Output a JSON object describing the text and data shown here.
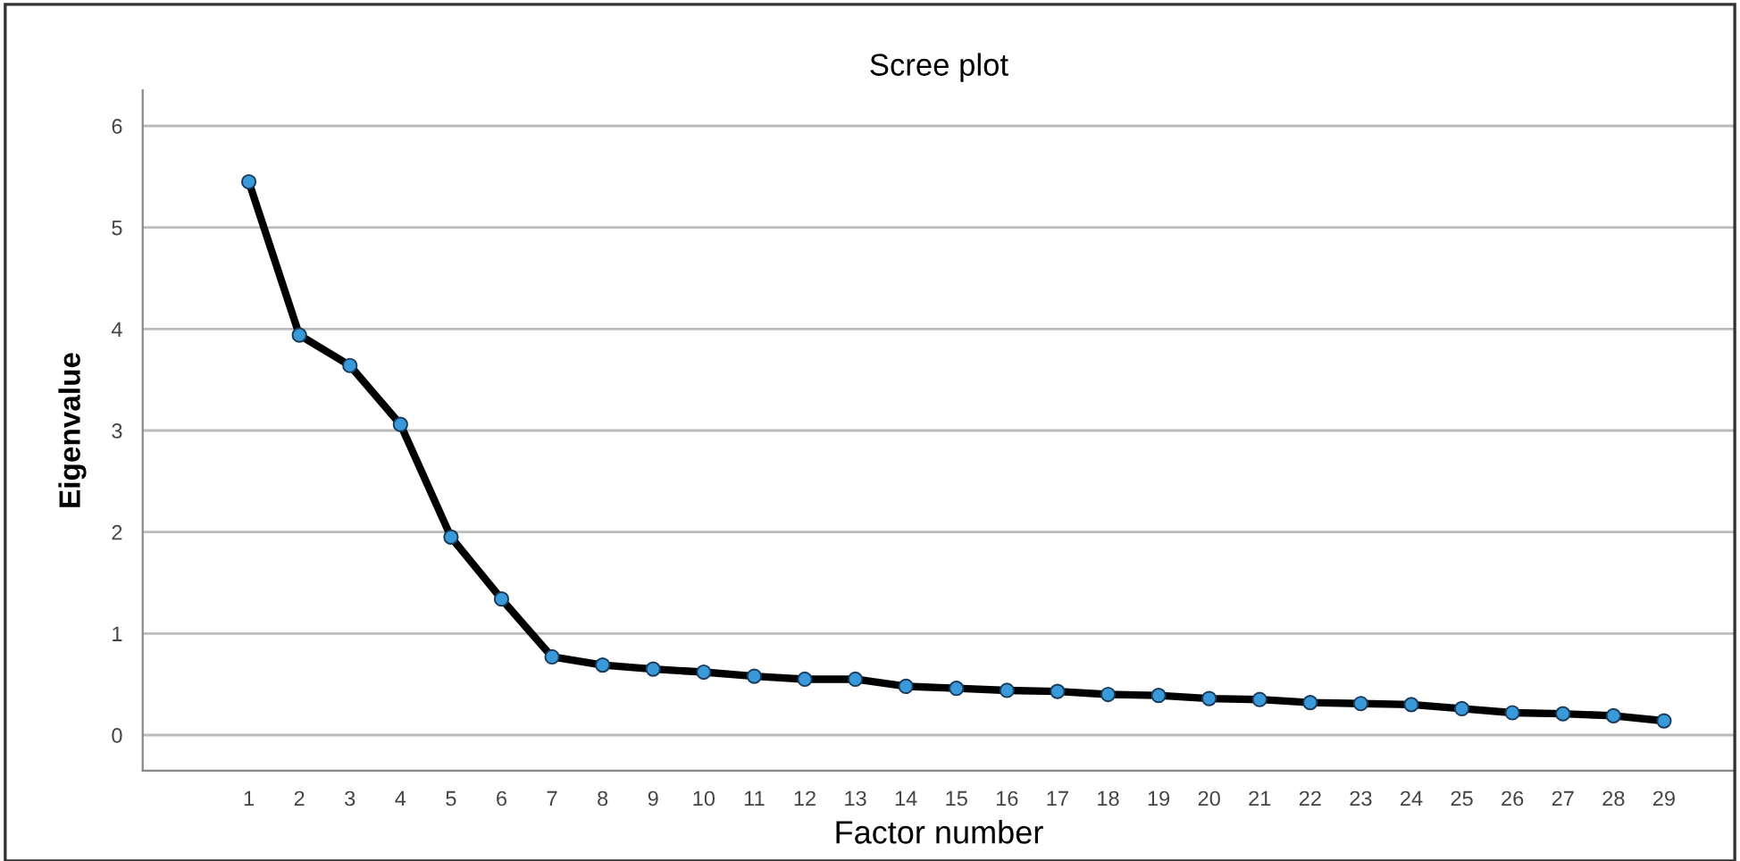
{
  "chart_data": {
    "type": "line",
    "title": "Scree plot",
    "xlabel": "Factor number",
    "ylabel": "Eigenvalue",
    "categories": [
      "1",
      "2",
      "3",
      "4",
      "5",
      "6",
      "7",
      "8",
      "9",
      "10",
      "11",
      "12",
      "13",
      "14",
      "15",
      "16",
      "17",
      "18",
      "19",
      "20",
      "21",
      "22",
      "23",
      "24",
      "25",
      "26",
      "27",
      "28",
      "29"
    ],
    "series": [
      {
        "color": "#000000",
        "values": [
          5.45,
          3.94,
          3.64,
          3.06,
          1.95,
          1.34,
          0.77,
          0.69,
          0.65,
          0.62,
          0.58,
          0.55,
          0.55,
          0.48,
          0.46,
          0.44,
          0.43,
          0.4,
          0.39,
          0.36,
          0.35,
          0.32,
          0.31,
          0.3,
          0.26,
          0.22,
          0.21,
          0.19,
          0.14
        ]
      }
    ],
    "ylim": [
      -0.35,
      6.35
    ],
    "yticks": [
      0,
      1,
      2,
      3,
      4,
      5,
      6
    ],
    "grid": "y",
    "marker": "circle",
    "line_style": "solid",
    "legend": false
  }
}
